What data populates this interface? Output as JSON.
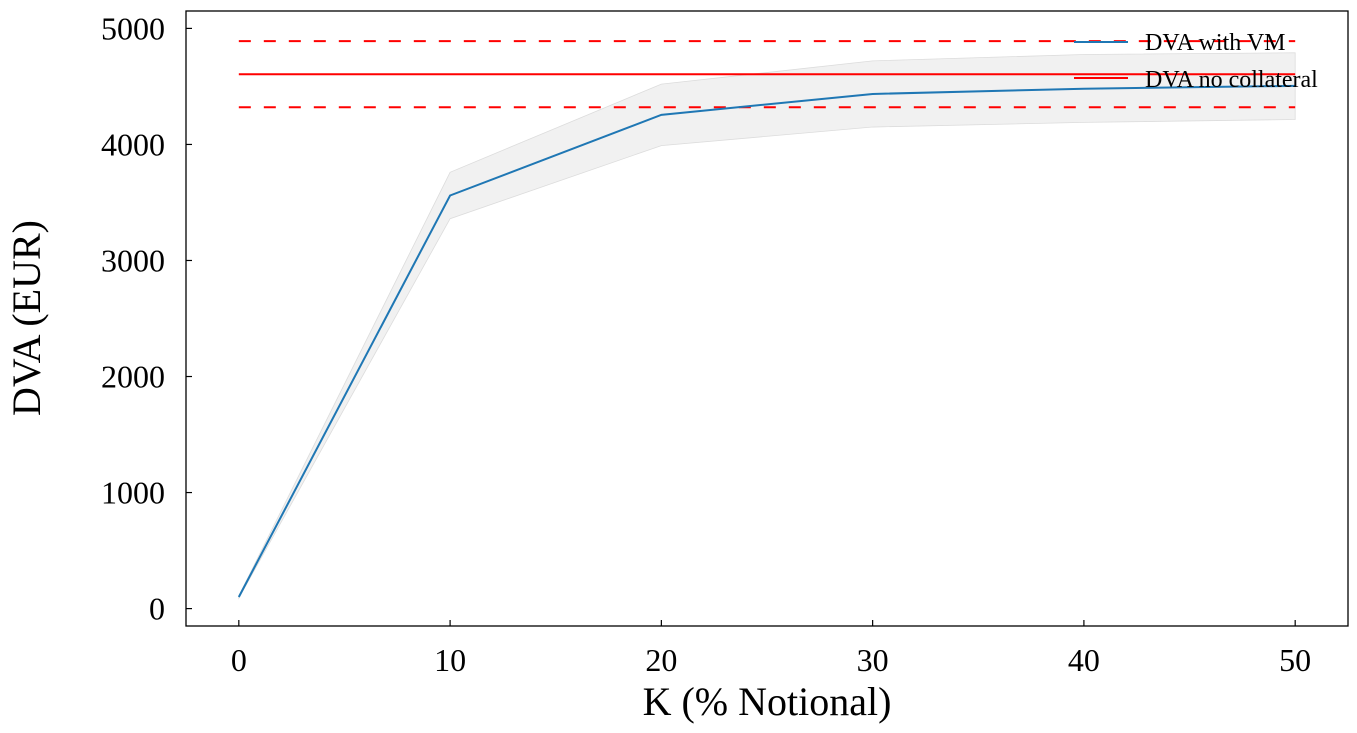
{
  "chart_data": {
    "type": "line",
    "xlabel": "K (% Notional)",
    "ylabel": "DVA (EUR)",
    "xlim": [
      -2.5,
      52.5
    ],
    "ylim": [
      -150,
      5150
    ],
    "x_ticks": [
      0,
      10,
      20,
      30,
      40,
      50
    ],
    "y_ticks": [
      0,
      1000,
      2000,
      3000,
      4000,
      5000
    ],
    "x_tick_labels": [
      "0",
      "10",
      "20",
      "30",
      "40",
      "50"
    ],
    "y_tick_labels": [
      "0",
      "1000",
      "2000",
      "3000",
      "4000",
      "5000"
    ],
    "grid": false,
    "legend_position": "top-right",
    "series": [
      {
        "name": "DVA with VM",
        "color": "#1f77b4",
        "style": "solid",
        "x": [
          0,
          10,
          20,
          30,
          40,
          50
        ],
        "values": [
          100,
          3560,
          4255,
          4435,
          4480,
          4505
        ],
        "band_upper": [
          110,
          3760,
          4520,
          4720,
          4775,
          4790
        ],
        "band_lower": [
          90,
          3360,
          3990,
          4150,
          4190,
          4215
        ]
      },
      {
        "name": "DVA no collateral",
        "color": "#ff0000",
        "style": "solid",
        "constant": 4605,
        "x_range": [
          0,
          50
        ],
        "bound_upper": 4890,
        "bound_lower": 4320
      }
    ]
  }
}
